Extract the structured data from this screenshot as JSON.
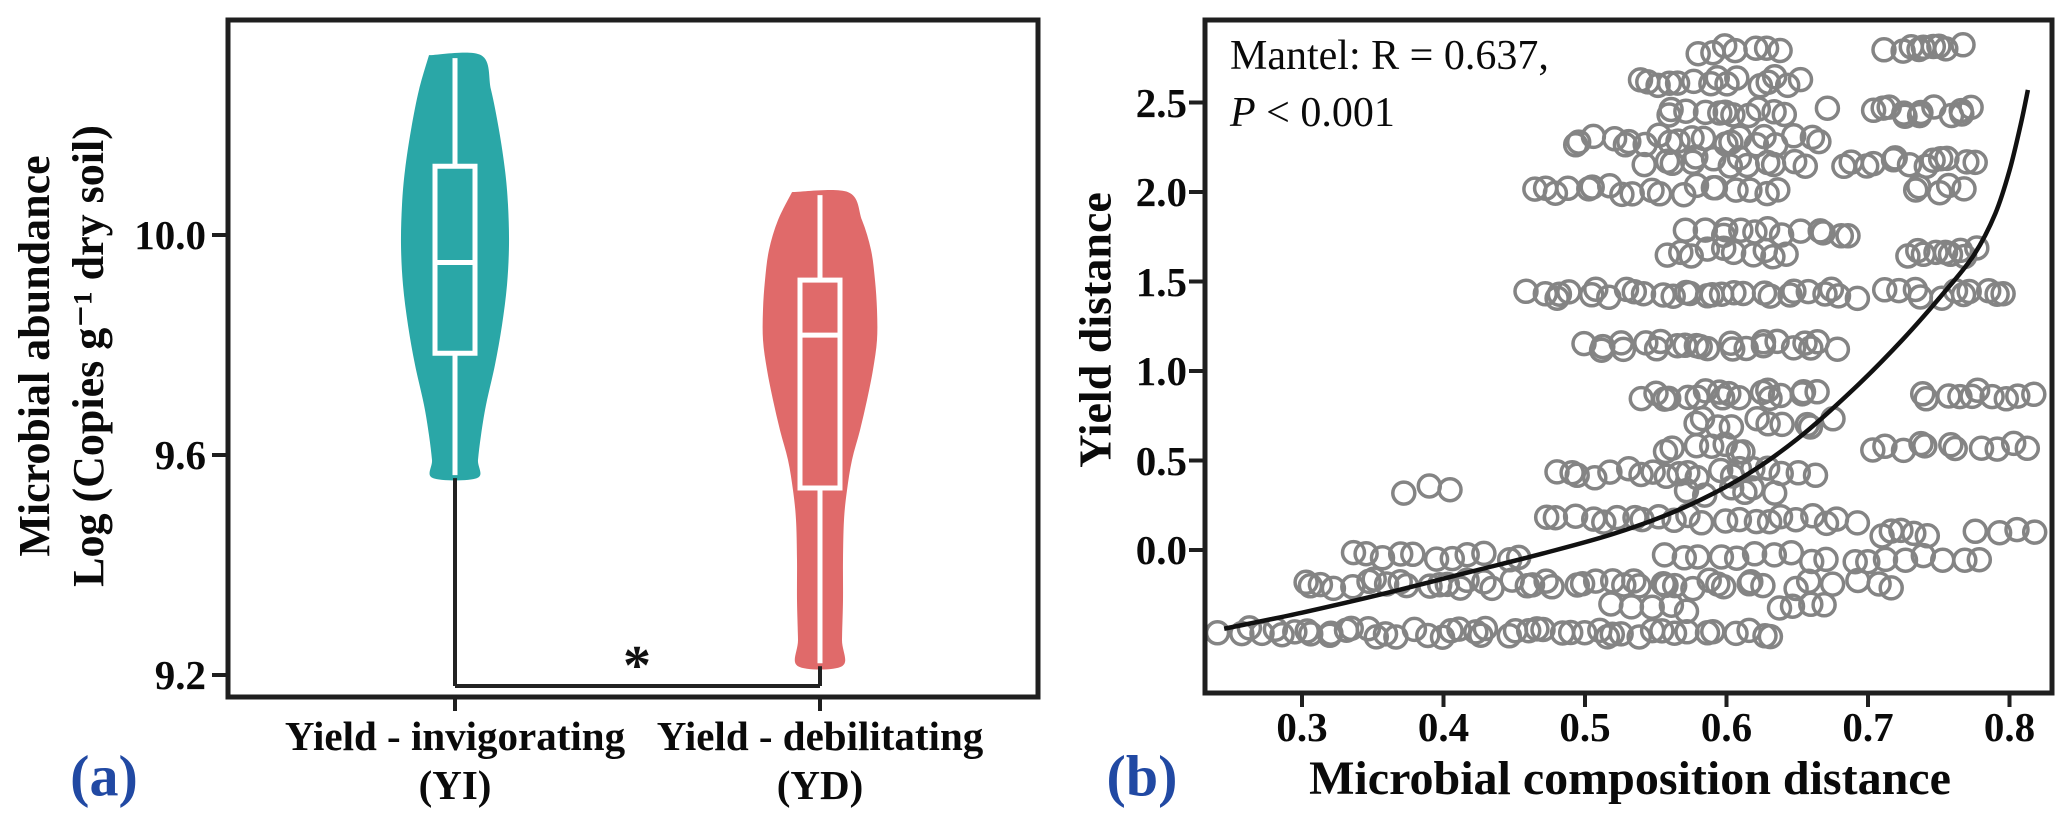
{
  "figure": {
    "background": "#FFFFFF",
    "axis_color": "#1F1F1F",
    "panel_letter_color": "#2149A3",
    "panels": {
      "a_letter": "(a)",
      "b_letter": "(b)"
    }
  },
  "chart_data": [
    {
      "id": "a",
      "type": "violin-box",
      "ylabel_line1": "Microbial abundance",
      "ylabel_line2": "Log (Copies g⁻¹ dry soil)",
      "ylim": [
        9.16,
        10.39
      ],
      "yticks": [
        {
          "v": 9.2,
          "label": "9.2"
        },
        {
          "v": 9.6,
          "label": "9.6"
        },
        {
          "v": 10.0,
          "label": "10.0"
        }
      ],
      "categories": [
        {
          "line1": "Yield - invigorating",
          "line2": "(YI)"
        },
        {
          "line1": "Yield - debilitating",
          "line2": "(YD)"
        }
      ],
      "series": [
        {
          "name": "Yield-invigorating (YI)",
          "color": "#2AA7A7",
          "violin_max": 10.327,
          "q3": 10.125,
          "median": 9.95,
          "q1": 9.785,
          "violin_min": 9.558,
          "whisker_low": 9.18,
          "profile": [
            [
              10.327,
              26
            ],
            [
              10.264,
              36
            ],
            [
              10.191,
              44
            ],
            [
              10.118,
              50
            ],
            [
              10.055,
              53
            ],
            [
              9.982,
              54
            ],
            [
              9.909,
              52
            ],
            [
              9.836,
              47
            ],
            [
              9.764,
              40
            ],
            [
              9.691,
              31
            ],
            [
              9.636,
              26
            ],
            [
              9.591,
              23
            ],
            [
              9.558,
              22
            ]
          ]
        },
        {
          "name": "Yield-debilitating (YD)",
          "color": "#E06A6A",
          "violin_max": 10.078,
          "q3": 9.918,
          "median": 9.818,
          "q1": 9.54,
          "violin_min": 9.216,
          "whisker_low": 9.18,
          "profile": [
            [
              10.078,
              28
            ],
            [
              10.027,
              42
            ],
            [
              9.973,
              51
            ],
            [
              9.918,
              55
            ],
            [
              9.864,
              57
            ],
            [
              9.809,
              57
            ],
            [
              9.755,
              53
            ],
            [
              9.7,
              47
            ],
            [
              9.645,
              40
            ],
            [
              9.591,
              32
            ],
            [
              9.536,
              27
            ],
            [
              9.482,
              24
            ],
            [
              9.409,
              23
            ],
            [
              9.336,
              23
            ],
            [
              9.264,
              22
            ],
            [
              9.216,
              22
            ]
          ]
        }
      ],
      "significance": {
        "symbol": "*",
        "bracket_y": 9.18
      }
    },
    {
      "id": "b",
      "type": "scatter",
      "annotation": {
        "line1": "Mantel: R = 0.637,",
        "line2_italic": "P",
        "line2_rest": " < 0.001"
      },
      "xlabel": "Microbial composition distance",
      "ylabel": "Yield distance",
      "xlim": [
        0.23,
        0.83
      ],
      "ylim": [
        -0.8,
        2.96
      ],
      "xticks": [
        {
          "v": 0.3,
          "label": "0.3"
        },
        {
          "v": 0.4,
          "label": "0.4"
        },
        {
          "v": 0.5,
          "label": "0.5"
        },
        {
          "v": 0.6,
          "label": "0.6"
        },
        {
          "v": 0.7,
          "label": "0.7"
        },
        {
          "v": 0.8,
          "label": "0.8"
        }
      ],
      "yticks": [
        {
          "v": 0.0,
          "label": "0.0"
        },
        {
          "v": 0.5,
          "label": "0.5"
        },
        {
          "v": 1.0,
          "label": "1.0"
        },
        {
          "v": 1.5,
          "label": "1.5"
        },
        {
          "v": 2.0,
          "label": "2.0"
        },
        {
          "v": 2.5,
          "label": "2.5"
        }
      ],
      "marker": {
        "color": "#6F6F6F",
        "radius": 11,
        "stroke_width": 3.5,
        "opacity": 0.85
      },
      "fit_curve_color": "#111111",
      "bands": [
        {
          "y": 2.8,
          "runs": [
            [
              0.585,
              0.635,
              7
            ],
            [
              0.715,
              0.765,
              9
            ]
          ]
        },
        {
          "y": 2.62,
          "runs": [
            [
              0.535,
              0.655,
              15
            ]
          ]
        },
        {
          "y": 2.45,
          "runs": [
            [
              0.555,
              0.645,
              11
            ],
            [
              0.675,
              0.675,
              1
            ],
            [
              0.7,
              0.775,
              12
            ]
          ]
        },
        {
          "y": 2.29,
          "runs": [
            [
              0.49,
              0.665,
              21
            ]
          ]
        },
        {
          "y": 2.17,
          "runs": [
            [
              0.545,
              0.655,
              13
            ],
            [
              0.685,
              0.775,
              13
            ]
          ]
        },
        {
          "y": 2.01,
          "runs": [
            [
              0.46,
              0.635,
              19
            ],
            [
              0.73,
              0.765,
              5
            ]
          ]
        },
        {
          "y": 1.78,
          "runs": [
            [
              0.575,
              0.69,
              13
            ]
          ]
        },
        {
          "y": 1.66,
          "runs": [
            [
              0.555,
              0.645,
              10
            ],
            [
              0.725,
              0.775,
              9
            ]
          ]
        },
        {
          "y": 1.43,
          "runs": [
            [
              0.46,
              0.69,
              29
            ],
            [
              0.715,
              0.8,
              11
            ]
          ]
        },
        {
          "y": 1.14,
          "runs": [
            [
              0.5,
              0.675,
              24
            ]
          ]
        },
        {
          "y": 0.87,
          "runs": [
            [
              0.54,
              0.665,
              18
            ],
            [
              0.735,
              0.815,
              10
            ]
          ]
        },
        {
          "y": 0.71,
          "runs": [
            [
              0.575,
              0.675,
              10
            ]
          ]
        },
        {
          "y": 0.57,
          "runs": [
            [
              0.555,
              0.615,
              7
            ],
            [
              0.7,
              0.81,
              11
            ]
          ]
        },
        {
          "y": 0.43,
          "runs": [
            [
              0.48,
              0.66,
              20
            ]
          ]
        },
        {
          "y": 0.33,
          "runs": [
            [
              0.375,
              0.405,
              3
            ],
            [
              0.575,
              0.635,
              6
            ]
          ]
        },
        {
          "y": 0.17,
          "runs": [
            [
              0.47,
              0.69,
              22
            ]
          ]
        },
        {
          "y": 0.09,
          "runs": [
            [
              0.705,
              0.745,
              5
            ],
            [
              0.775,
              0.815,
              4
            ]
          ]
        },
        {
          "y": -0.04,
          "runs": [
            [
              0.335,
              0.455,
              11
            ],
            [
              0.555,
              0.7,
              12
            ],
            [
              0.71,
              0.78,
              6
            ]
          ]
        },
        {
          "y": -0.19,
          "runs": [
            [
              0.3,
              0.62,
              38
            ],
            [
              0.63,
              0.72,
              7
            ]
          ]
        },
        {
          "y": -0.32,
          "runs": [
            [
              0.52,
              0.575,
              5
            ],
            [
              0.635,
              0.67,
              4
            ]
          ]
        },
        {
          "y": -0.46,
          "runs": [
            [
              0.245,
              0.545,
              39
            ],
            [
              0.55,
              0.635,
              9
            ]
          ]
        }
      ],
      "fit_curve": [
        [
          0.245,
          -0.44
        ],
        [
          0.3,
          -0.35
        ],
        [
          0.36,
          -0.24
        ],
        [
          0.42,
          -0.12
        ],
        [
          0.47,
          -0.02
        ],
        [
          0.52,
          0.09
        ],
        [
          0.565,
          0.22
        ],
        [
          0.61,
          0.4
        ],
        [
          0.65,
          0.62
        ],
        [
          0.69,
          0.9
        ],
        [
          0.725,
          1.18
        ],
        [
          0.755,
          1.45
        ],
        [
          0.775,
          1.65
        ],
        [
          0.79,
          1.88
        ],
        [
          0.8,
          2.12
        ],
        [
          0.808,
          2.38
        ],
        [
          0.813,
          2.57
        ]
      ]
    }
  ]
}
